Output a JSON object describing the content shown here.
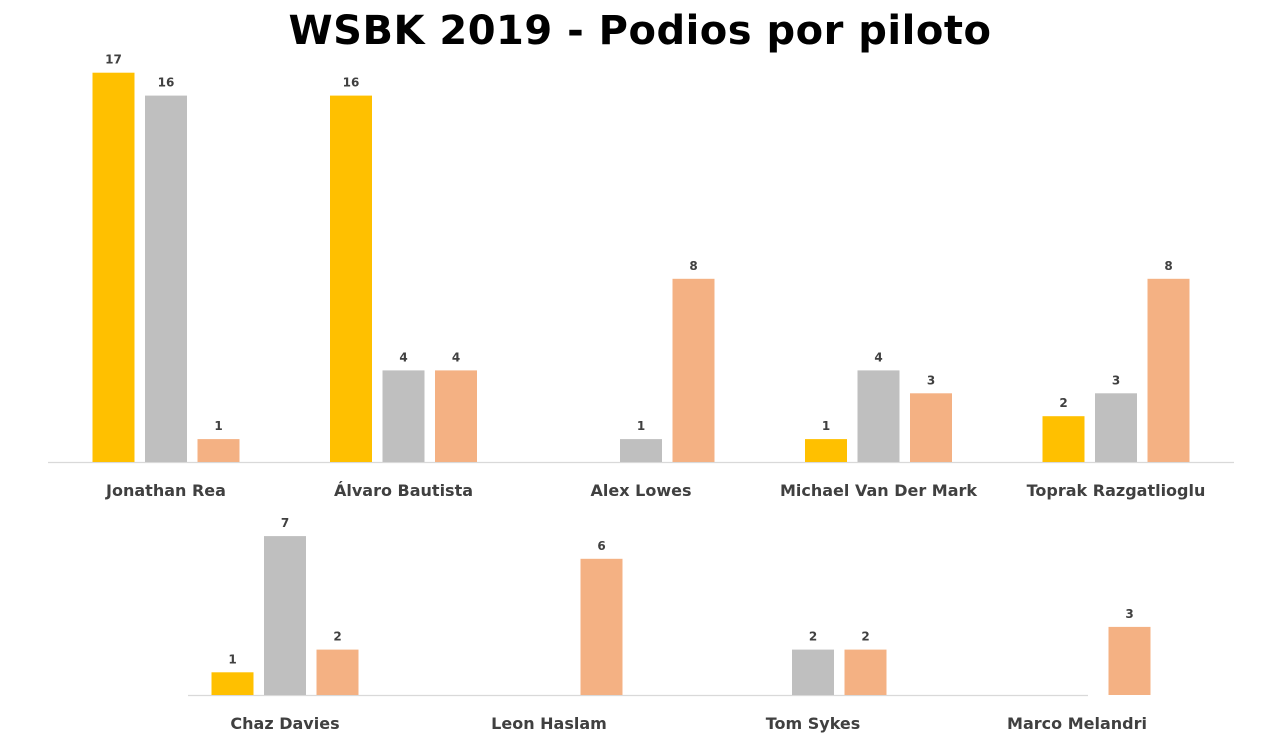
{
  "chart_data": {
    "type": "bar",
    "title": "WSBK 2019 - Podios por piloto",
    "colors": [
      "#FFC000",
      "#BFBFBF",
      "#F4B183"
    ],
    "rows": [
      {
        "categories": [
          "Jonathan Rea",
          "Álvaro Bautista",
          "Alex Lowes",
          "Michael Van Der Mark",
          "Toprak Razgatlioglu"
        ],
        "series": [
          {
            "values": [
              17,
              16,
              0,
              1,
              2
            ]
          },
          {
            "values": [
              16,
              4,
              1,
              4,
              3
            ]
          },
          {
            "values": [
              1,
              4,
              8,
              3,
              8
            ]
          }
        ]
      },
      {
        "categories": [
          "Chaz Davies",
          "Leon Haslam",
          "Tom Sykes",
          "Marco Melandri"
        ],
        "series": [
          {
            "values": [
              1,
              0,
              0,
              0
            ]
          },
          {
            "values": [
              7,
              0,
              2,
              0
            ]
          },
          {
            "values": [
              2,
              6,
              2,
              3
            ]
          }
        ]
      }
    ]
  }
}
